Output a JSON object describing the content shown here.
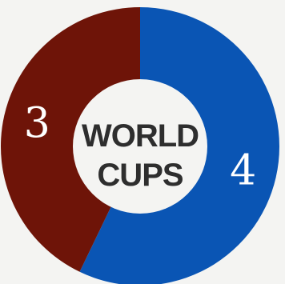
{
  "chart_data": {
    "type": "pie",
    "style": "donut",
    "center_label": [
      "WORLD",
      "CUPS"
    ],
    "categories": [
      "",
      ""
    ],
    "values": [
      4,
      3
    ],
    "value_labels": [
      "4",
      "3"
    ],
    "colors": [
      "#0a55b4",
      "#6e1408"
    ],
    "background": "#f4f4f2",
    "legend": "none"
  }
}
